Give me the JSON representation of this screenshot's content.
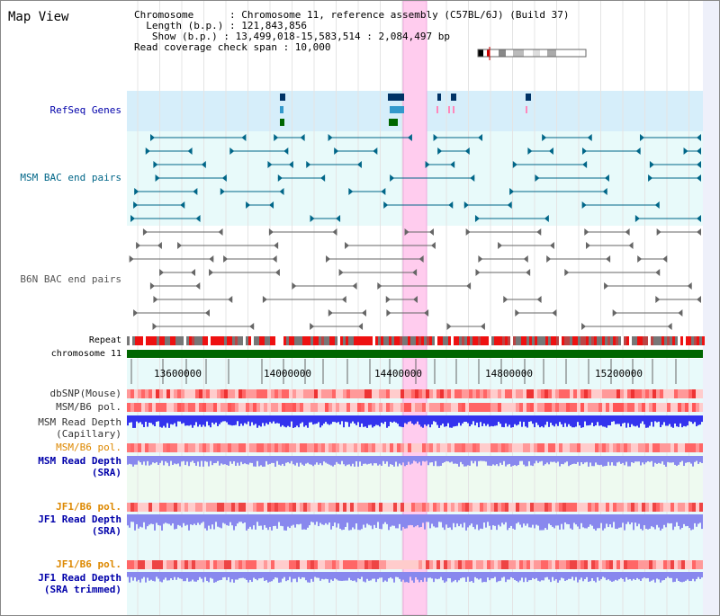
{
  "map_title": "Map View",
  "header": {
    "chromosome_line": "Chromosome      : Chromosome 11, reference assembly (C57BL/6J) (Build 37)",
    "length_line": "  Length (b.p.) : 121,843,856",
    "show_line": "   Show (b.p.) : 13,499,018-15,583,514 : 2,084,497 bp",
    "coverage_line": "Read coverage check span : 10,000"
  },
  "tracks": {
    "refseq": {
      "label": "RefSeq Genes",
      "color": "#0000aa"
    },
    "msm_bac": {
      "label": "MSM BAC end pairs",
      "color": "#006688"
    },
    "b6n_bac": {
      "label": "B6N BAC end pairs",
      "color": "#555555"
    },
    "repeat": {
      "label": "Repeat"
    },
    "chromosome": {
      "label": "chromosome 11"
    },
    "dbsnp": {
      "label": "dbSNP(Mouse)"
    },
    "msm_b6_pol": {
      "label": "MSM/B6 pol."
    },
    "msm_read_depth_cap_1": {
      "label": "MSM Read Depth"
    },
    "msm_read_depth_cap_2": {
      "label": "(Capillary)"
    },
    "msm_b6_pol_2": {
      "label": "MSM/B6 pol.",
      "color": "#dd8800"
    },
    "msm_read_depth_sra_1": {
      "label": "MSM Read Depth",
      "color": "#0000aa"
    },
    "msm_read_depth_sra_2": {
      "label": "(SRA)",
      "color": "#0000aa"
    },
    "jf1_b6_pol": {
      "label": "JF1/B6 pol.",
      "color": "#dd8800"
    },
    "jf1_read_depth_1": {
      "label": "JF1 Read Depth",
      "color": "#0000aa"
    },
    "jf1_read_depth_2": {
      "label": "(SRA)",
      "color": "#0000aa"
    },
    "jf1_b6_pol_2": {
      "label": "JF1/B6 pol.",
      "color": "#dd8800"
    },
    "jf1_trim_1": {
      "label": "JF1 Read Depth",
      "color": "#0000aa"
    },
    "jf1_trim_2": {
      "label": "(SRA trimmed)",
      "color": "#0000aa"
    }
  },
  "ruler": {
    "ticks": [
      "13600000",
      "14000000",
      "14400000",
      "14800000",
      "15200000"
    ]
  },
  "colors": {
    "highlight": "#ffccee",
    "refseq_bg": "#d6eefa",
    "bac_bg": "#e8fafa",
    "depth_bg": "#eefaf0",
    "chromosome_bar": "#006600",
    "depth_bar": "#3333ee",
    "depth_bar_light": "#8888ee"
  }
}
